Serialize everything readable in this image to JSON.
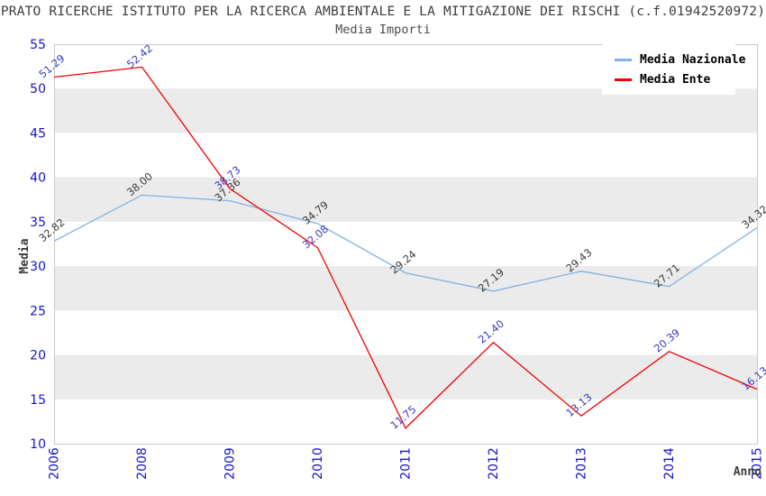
{
  "header": {
    "title": "PRATO RICERCHE ISTITUTO PER LA RICERCA AMBIENTALE E LA MITIGAZIONE DEI RISCHI (c.f.01942520972)",
    "subtitle": "Media Importi"
  },
  "chart_data": {
    "type": "line",
    "title": "PRATO RICERCHE ISTITUTO PER LA RICERCA AMBIENTALE E LA MITIGAZIONE DEI RISCHI (c.f.01942520972)",
    "subtitle": "Media Importi",
    "xlabel": "Anno",
    "ylabel": "Media",
    "categories": [
      "2006",
      "2008",
      "2009",
      "2010",
      "2011",
      "2012",
      "2013",
      "2014",
      "2015"
    ],
    "series": [
      {
        "name": "Media Nazionale",
        "color": "#7FB2E8",
        "label_color": "#3a3a3a",
        "values": [
          32.82,
          38.0,
          37.36,
          34.79,
          29.24,
          27.19,
          29.43,
          27.71,
          34.32
        ]
      },
      {
        "name": "Media Ente",
        "color": "#F00000",
        "label_color": "#3939C2",
        "values": [
          51.29,
          52.42,
          38.73,
          32.08,
          11.75,
          21.4,
          13.13,
          20.39,
          16.13
        ]
      }
    ],
    "ylim": [
      10,
      55
    ],
    "ytick_step": 5,
    "grid": "alternating-bands",
    "band_color": "#EBEBEB",
    "border_color": "#C9C9C9",
    "tick_color": "#1414CC",
    "axis_title_color": "#3c3c3c",
    "legend_position": "top-right"
  },
  "legend": {
    "items": [
      {
        "label": "Media Nazionale"
      },
      {
        "label": "Media Ente"
      }
    ]
  }
}
